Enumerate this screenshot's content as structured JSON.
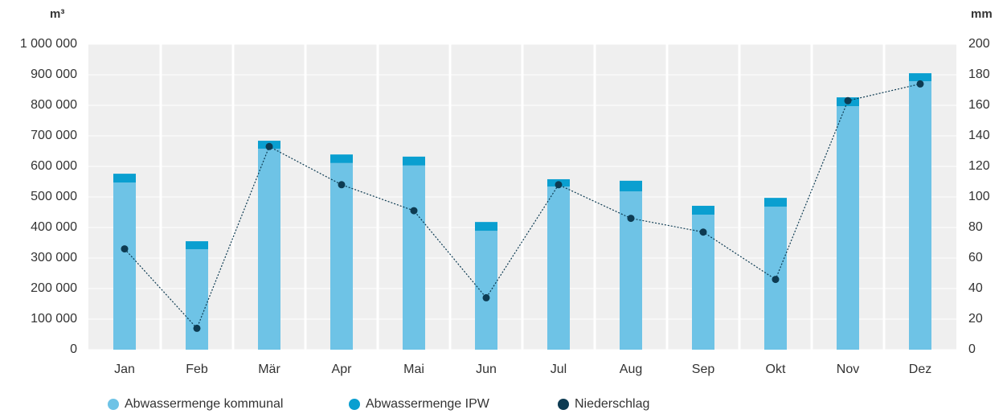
{
  "chart_data": {
    "type": "bar",
    "y_label": "m³",
    "y2_label": "mm",
    "categories": [
      "Jan",
      "Feb",
      "Mär",
      "Apr",
      "Mai",
      "Jun",
      "Jul",
      "Aug",
      "Sep",
      "Okt",
      "Nov",
      "Dez"
    ],
    "series": [
      {
        "name": "Abwassermenge kommunal",
        "color": "#6ec3e6",
        "values": [
          547000,
          329000,
          658000,
          611000,
          603000,
          389000,
          534000,
          518000,
          442000,
          468000,
          797000,
          879000
        ]
      },
      {
        "name": "Abwassermenge IPW",
        "color": "#0a9fd0",
        "values": [
          29000,
          26000,
          26000,
          28000,
          29000,
          29000,
          24000,
          35000,
          29000,
          29000,
          29000,
          26000
        ]
      },
      {
        "name": "Niederschlag",
        "color": "#0d3b52",
        "axis": "y2",
        "type": "line",
        "values": [
          66,
          14,
          133,
          108,
          91,
          34,
          108,
          86,
          77,
          46,
          163,
          174
        ]
      }
    ],
    "stacked": true,
    "ylim": [
      0,
      1000000
    ],
    "yticks": [
      0,
      {
        "value": 100000,
        "label": "100 000"
      },
      {
        "value": 200000,
        "label": "200 000"
      },
      {
        "value": 300000,
        "label": "300 000"
      },
      {
        "value": 400000,
        "label": "400 000"
      },
      {
        "value": 500000,
        "label": "500 000"
      },
      {
        "value": 600000,
        "label": "600 000"
      },
      {
        "value": 700000,
        "label": "700 000"
      },
      {
        "value": 800000,
        "label": "800 000"
      },
      {
        "value": 900000,
        "label": "900 000"
      },
      {
        "value": 1000000,
        "label": "1 000 000"
      }
    ],
    "y2lim": [
      0,
      200
    ],
    "y2ticks": [
      0,
      20,
      40,
      60,
      80,
      100,
      120,
      140,
      160,
      180,
      200
    ],
    "grid": true,
    "legend": "bottom"
  }
}
